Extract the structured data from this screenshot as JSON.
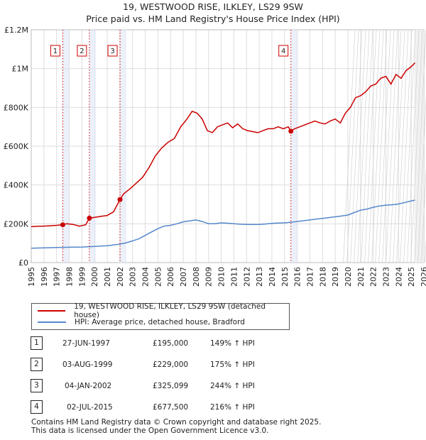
{
  "chart_data": {
    "type": "line",
    "title": "19, WESTWOOD RISE, ILKLEY, LS29 9SW",
    "subtitle": "Price paid vs. HM Land Registry's House Price Index (HPI)",
    "xlim": [
      1995,
      2026
    ],
    "ylim": [
      0,
      1200000
    ],
    "yticks": [
      0,
      200000,
      400000,
      600000,
      800000,
      1000000,
      1200000
    ],
    "ytick_labels": [
      "£0",
      "£200K",
      "£400K",
      "£600K",
      "£800K",
      "£1M",
      "£1.2M"
    ],
    "xticks": [
      1995,
      1996,
      1997,
      1998,
      1999,
      2000,
      2001,
      2002,
      2003,
      2004,
      2005,
      2006,
      2007,
      2008,
      2009,
      2010,
      2011,
      2012,
      2013,
      2014,
      2015,
      2016,
      2017,
      2018,
      2019,
      2020,
      2021,
      2022,
      2023,
      2024,
      2025,
      2026
    ],
    "xtick_labels": [
      "1995",
      "1996",
      "1997",
      "1998",
      "1999",
      "2000",
      "2001",
      "2002",
      "2003",
      "2004",
      "2005",
      "2006",
      "2007",
      "2008",
      "2009",
      "2010",
      "2011",
      "2012",
      "2013",
      "2014",
      "2015",
      "2016",
      "2017",
      "2018",
      "2019",
      "2020",
      "2021",
      "2022",
      "2023",
      "2024",
      "2025",
      "2026"
    ],
    "grid": true,
    "future_hatch_from": 2025.25,
    "series": [
      {
        "name": "19, WESTWOOD RISE, ILKLEY, LS29 9SW (detached house)",
        "color": "#cc0000",
        "x": [
          1995,
          1995.5,
          1996,
          1996.5,
          1997,
          1997.49,
          1997.8,
          1998.3,
          1998.8,
          1999.3,
          1999.59,
          2000,
          2000.5,
          2001,
          2001.5,
          2002.01,
          2002.3,
          2002.8,
          2003.3,
          2003.8,
          2004.3,
          2004.8,
          2005.3,
          2005.8,
          2006.3,
          2006.8,
          2007.3,
          2007.7,
          2008.1,
          2008.5,
          2008.9,
          2009.3,
          2009.7,
          2010.1,
          2010.5,
          2010.9,
          2011.3,
          2011.7,
          2012.1,
          2012.5,
          2012.9,
          2013.3,
          2013.7,
          2014.1,
          2014.5,
          2014.9,
          2015.3,
          2015.5,
          2015.8,
          2016.2,
          2016.6,
          2017,
          2017.4,
          2017.8,
          2018.2,
          2018.6,
          2019,
          2019.4,
          2019.8,
          2020.2,
          2020.6,
          2021,
          2021.4,
          2021.8,
          2022.2,
          2022.6,
          2023,
          2023.4,
          2023.8,
          2024.2,
          2024.6,
          2025,
          2025.3
        ],
        "values": [
          185000,
          187000,
          188000,
          190000,
          192000,
          195000,
          200000,
          197000,
          188000,
          195000,
          229000,
          233000,
          238000,
          243000,
          262000,
          325099,
          355000,
          380000,
          410000,
          440000,
          490000,
          550000,
          590000,
          620000,
          640000,
          700000,
          740000,
          780000,
          770000,
          740000,
          680000,
          670000,
          700000,
          710000,
          720000,
          695000,
          715000,
          690000,
          680000,
          675000,
          670000,
          680000,
          690000,
          690000,
          700000,
          690000,
          700000,
          677500,
          690000,
          700000,
          710000,
          720000,
          730000,
          720000,
          715000,
          730000,
          740000,
          720000,
          770000,
          800000,
          850000,
          860000,
          880000,
          910000,
          920000,
          950000,
          960000,
          920000,
          970000,
          950000,
          990000,
          1010000,
          1030000
        ]
      },
      {
        "name": "HPI: Average price, detached house, Bradford",
        "color": "#5588cc",
        "x": [
          1995,
          1996,
          1997,
          1998,
          1999,
          2000,
          2001,
          2002,
          2002.5,
          2003,
          2003.5,
          2004,
          2004.5,
          2005,
          2005.5,
          2006,
          2006.5,
          2007,
          2007.5,
          2008,
          2008.5,
          2009,
          2009.5,
          2010,
          2010.5,
          2011,
          2011.5,
          2012,
          2012.5,
          2013,
          2013.5,
          2014,
          2014.5,
          2015,
          2015.5,
          2016,
          2016.5,
          2017,
          2017.5,
          2018,
          2018.5,
          2019,
          2019.5,
          2020,
          2020.5,
          2021,
          2021.5,
          2022,
          2022.5,
          2023,
          2023.5,
          2024,
          2024.5,
          2025,
          2025.3
        ],
        "values": [
          74000,
          76000,
          78000,
          79000,
          80000,
          83000,
          87000,
          95000,
          102000,
          112000,
          123000,
          140000,
          158000,
          175000,
          188000,
          192000,
          200000,
          210000,
          215000,
          220000,
          212000,
          200000,
          200000,
          205000,
          203000,
          200000,
          198000,
          197000,
          196000,
          197000,
          199000,
          202000,
          204000,
          205000,
          208000,
          212000,
          216000,
          220000,
          224000,
          228000,
          232000,
          236000,
          240000,
          245000,
          258000,
          270000,
          276000,
          285000,
          292000,
          296000,
          298000,
          302000,
          310000,
          318000,
          322000
        ]
      }
    ],
    "sale_markers": [
      {
        "label": "1",
        "x": 1997.49,
        "value": 195000
      },
      {
        "label": "2",
        "x": 1999.59,
        "value": 229000
      },
      {
        "label": "3",
        "x": 2002.01,
        "value": 325099
      },
      {
        "label": "4",
        "x": 2015.5,
        "value": 677500
      }
    ]
  },
  "legend": {
    "items": [
      {
        "label": "19, WESTWOOD RISE, ILKLEY, LS29 9SW (detached house)",
        "color": "#cc0000"
      },
      {
        "label": "HPI: Average price, detached house, Bradford",
        "color": "#5588cc"
      }
    ]
  },
  "sales": [
    {
      "num": "1",
      "date": "27-JUN-1997",
      "price": "£195,000",
      "hpi": "149% ↑ HPI"
    },
    {
      "num": "2",
      "date": "03-AUG-1999",
      "price": "£229,000",
      "hpi": "175% ↑ HPI"
    },
    {
      "num": "3",
      "date": "04-JAN-2002",
      "price": "£325,099",
      "hpi": "244% ↑ HPI"
    },
    {
      "num": "4",
      "date": "02-JUL-2015",
      "price": "£677,500",
      "hpi": "216% ↑ HPI"
    }
  ],
  "footer": {
    "line1": "Contains HM Land Registry data © Crown copyright and database right 2025.",
    "line2": "This data is licensed under the Open Government Licence v3.0."
  }
}
